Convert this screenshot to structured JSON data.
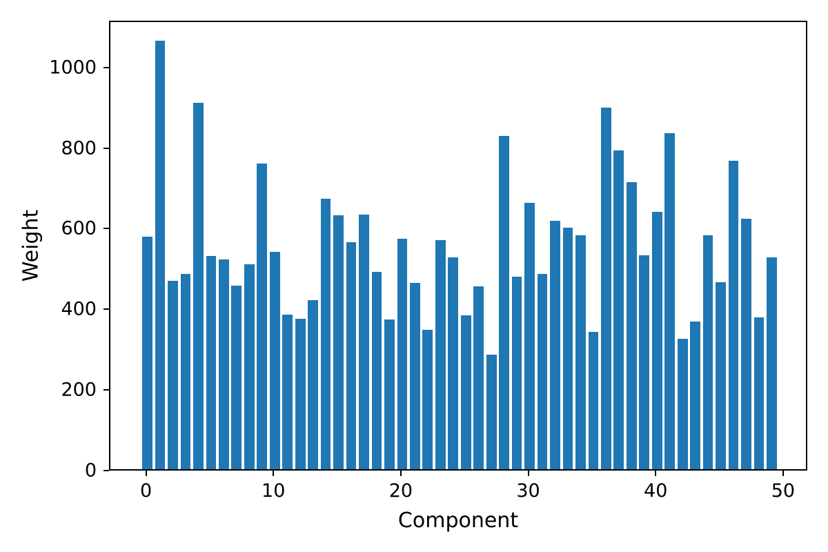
{
  "figure": {
    "title": ""
  },
  "chart_data": {
    "type": "bar",
    "title": "",
    "xlabel": "Component",
    "ylabel": "Weight",
    "categories": [
      0,
      1,
      2,
      3,
      4,
      5,
      6,
      7,
      8,
      9,
      10,
      11,
      12,
      13,
      14,
      15,
      16,
      17,
      18,
      19,
      20,
      21,
      22,
      23,
      24,
      25,
      26,
      27,
      28,
      29,
      30,
      31,
      32,
      33,
      34,
      35,
      36,
      37,
      38,
      39,
      40,
      41,
      42,
      43,
      44,
      45,
      46,
      47,
      48,
      49
    ],
    "values": [
      576,
      1063,
      468,
      484,
      909,
      529,
      521,
      456,
      508,
      758,
      540,
      383,
      373,
      419,
      671,
      630,
      564,
      632,
      490,
      371,
      572,
      463,
      345,
      569,
      525,
      381,
      454,
      285,
      827,
      477,
      660,
      485,
      616,
      599,
      581,
      341,
      897,
      790,
      712,
      530,
      638,
      834,
      324,
      366,
      581,
      464,
      765,
      622,
      376,
      525
    ],
    "xticks": [
      0,
      10,
      20,
      30,
      40,
      50
    ],
    "yticks": [
      0,
      200,
      400,
      600,
      800,
      1000
    ],
    "xlim": [
      -2.9,
      51.9
    ],
    "ylim": [
      0,
      1116
    ],
    "bar_width_fraction": 0.8,
    "bar_color": "#1f77b4",
    "axis_color": "#000000",
    "grid": false,
    "legend": null
  }
}
